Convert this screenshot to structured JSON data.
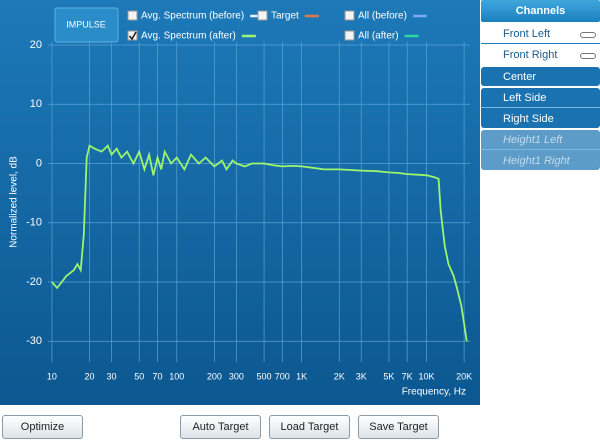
{
  "toolbar": {
    "impulse_button": "IMPULSE",
    "checkboxes": [
      {
        "label": "Avg. Spectrum (before)",
        "color": "#e8f4ff",
        "checked": false
      },
      {
        "label": "Target",
        "color": "#e0784a",
        "checked": false
      },
      {
        "label": "All (before)",
        "color": "#7fa8f0",
        "checked": false
      },
      {
        "label": "Avg. Spectrum (after)",
        "color": "#9cf56e",
        "checked": true
      },
      {
        "label": "All (after)",
        "color": "#2fd6a0",
        "checked": false
      }
    ]
  },
  "chart_data": {
    "type": "line",
    "x_label": "Frequency, Hz",
    "y_label": "Normalized level, dB",
    "log_x": true,
    "grid": true,
    "x": [
      10,
      11,
      12,
      13,
      15,
      16,
      17,
      18,
      19,
      20,
      22,
      25,
      28,
      30,
      33,
      36,
      40,
      45,
      50,
      55,
      60,
      65,
      70,
      75,
      80,
      90,
      100,
      115,
      130,
      150,
      170,
      200,
      230,
      250,
      280,
      300,
      350,
      400,
      500,
      600,
      700,
      850,
      1000,
      1300,
      1500,
      2000,
      2500,
      3000,
      4000,
      5000,
      6000,
      7000,
      8500,
      10000,
      11500,
      12500,
      13000,
      14000,
      15000,
      16500,
      17500,
      19000,
      20000,
      21000
    ],
    "series": [
      {
        "color": "#9cf56e",
        "values": [
          -20,
          -21,
          -20,
          -19,
          -18,
          -17,
          -18,
          -12,
          1,
          3,
          2.5,
          2,
          3,
          1.5,
          2.5,
          1,
          2,
          0,
          2,
          -1,
          1.5,
          -2,
          1,
          -1,
          2,
          0,
          1,
          -1,
          1.5,
          0,
          1,
          -0.5,
          0.5,
          -1,
          0.5,
          0,
          -0.5,
          0,
          0,
          -0.3,
          -0.5,
          -0.4,
          -0.5,
          -0.8,
          -1,
          -1,
          -1.1,
          -1.2,
          -1.3,
          -1.5,
          -1.6,
          -1.8,
          -1.9,
          -2,
          -2.3,
          -2.6,
          -8,
          -14,
          -17,
          -19,
          -21,
          -24,
          -27,
          -30
        ]
      }
    ],
    "xlim": [
      9.3,
      22300
    ],
    "ylim": [
      -33.5,
      20.5
    ],
    "xticks": [
      10,
      20,
      30,
      50,
      70,
      100,
      200,
      300,
      500,
      700,
      {
        "value": 1000,
        "label": "1K"
      },
      {
        "value": 2000,
        "label": "2K"
      },
      {
        "value": 3000,
        "label": "3K"
      },
      {
        "value": 5000,
        "label": "5K"
      },
      {
        "value": 7000,
        "label": "7K"
      },
      {
        "value": 10000,
        "label": "10K"
      },
      {
        "value": 20000,
        "label": "20K"
      }
    ],
    "yticks": [
      20,
      10,
      0,
      -10,
      -20,
      -30
    ]
  },
  "channels": {
    "title": "Channels",
    "items": [
      {
        "label": "Front Left",
        "linked": true,
        "disabled": false
      },
      {
        "label": "Front Right",
        "linked": true,
        "disabled": false
      },
      {
        "label": "Center",
        "linked": false,
        "disabled": false
      },
      {
        "label": "Left Side",
        "linked": false,
        "disabled": false
      },
      {
        "label": "Right Side",
        "linked": false,
        "disabled": false
      },
      {
        "label": "Height1 Left",
        "linked": false,
        "disabled": true
      },
      {
        "label": "Height1 Right",
        "linked": false,
        "disabled": true
      }
    ]
  },
  "buttons": [
    "Optimize",
    "Auto Target",
    "Load Target",
    "Save Target"
  ]
}
